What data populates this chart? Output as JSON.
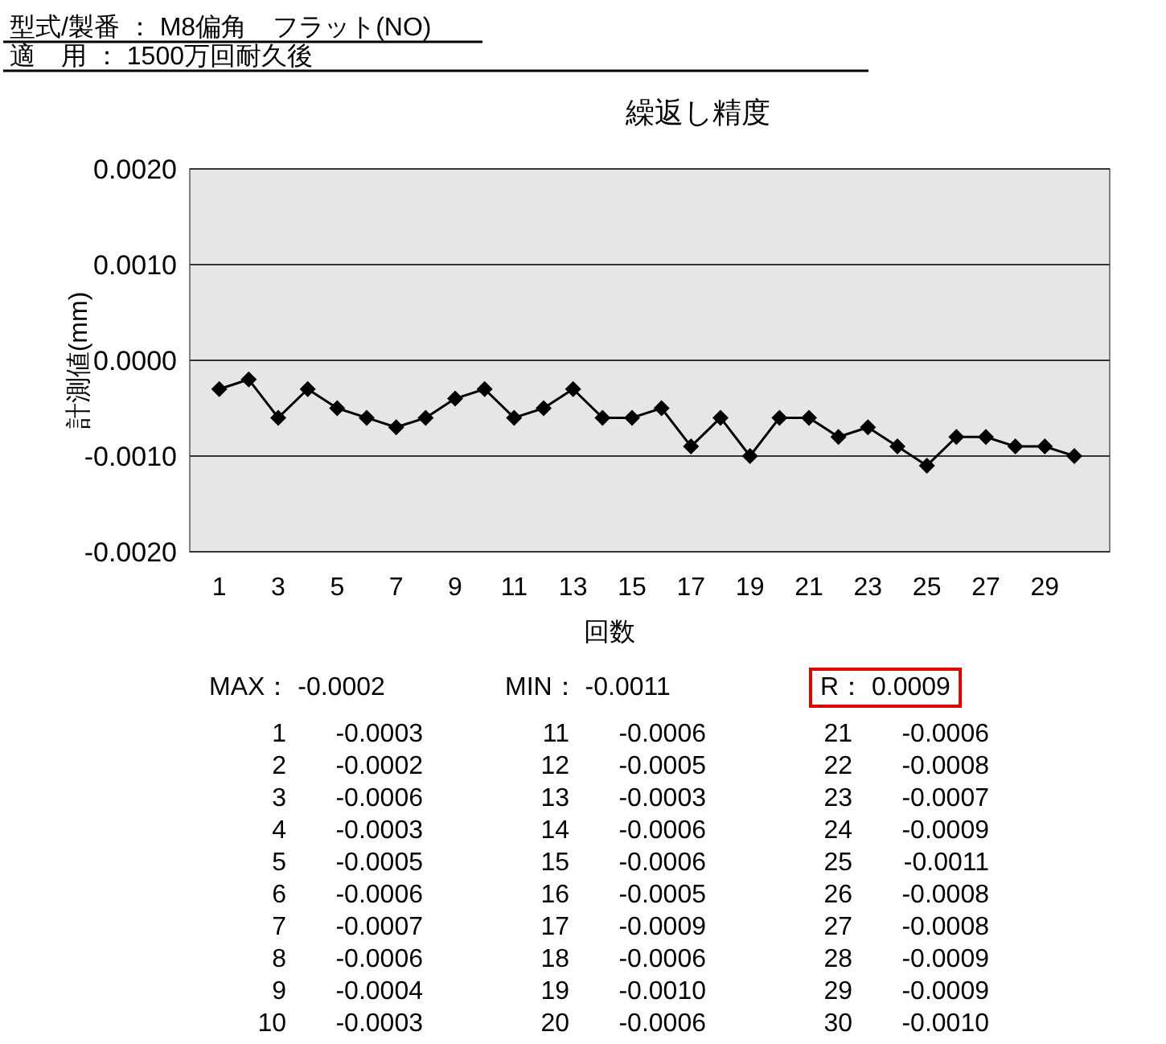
{
  "chart_data": {
    "type": "line",
    "title": "繰返し精度",
    "xlabel": "回数",
    "ylabel": "計測値(mm)",
    "annotations": [
      "型式/製番 ： M8偏角　フラット(NO)",
      "適　用 ： 1500万回耐久後",
      "MAX： -0.0002",
      "MIN： -0.0011",
      "R： 0.0009",
      "1 -0.0003",
      "2 -0.0002",
      "3 -0.0006",
      "4 -0.0003",
      "5 -0.0005",
      "6 -0.0006",
      "7 -0.0007",
      "8 -0.0006",
      "9 -0.0004",
      "10 -0.0003",
      "11 -0.0006",
      "12 -0.0005",
      "13 -0.0003",
      "14 -0.0006",
      "15 -0.0006",
      "16 -0.0005",
      "17 -0.0009",
      "18 -0.0006",
      "19 -0.0010",
      "20 -0.0006",
      "21 -0.0006",
      "22 -0.0008",
      "23 -0.0007",
      "24 -0.0009",
      "25 -0.0011",
      "26 -0.0008",
      "27 -0.0008",
      "28 -0.0009",
      "29 -0.0009",
      "30 -0.0010"
    ],
    "x": [
      1,
      2,
      3,
      4,
      5,
      6,
      7,
      8,
      9,
      10,
      11,
      12,
      13,
      14,
      15,
      16,
      17,
      18,
      19,
      20,
      21,
      22,
      23,
      24,
      25,
      26,
      27,
      28,
      29,
      30
    ],
    "series": [
      {
        "color": "#000000",
        "values": [
          -0.0003,
          -0.0002,
          -0.0006,
          -0.0003,
          -0.0005,
          -0.0006,
          -0.0007,
          -0.0006,
          -0.0004,
          -0.0003,
          -0.0006,
          -0.0005,
          -0.0003,
          -0.0006,
          -0.0006,
          -0.0005,
          -0.0009,
          -0.0006,
          -0.001,
          -0.0006,
          -0.0006,
          -0.0008,
          -0.0007,
          -0.0009,
          -0.0011,
          -0.0008,
          -0.0008,
          -0.0009,
          -0.0009,
          -0.001
        ]
      }
    ],
    "xlim": [
      0,
      31.2
    ],
    "xticks": [
      1,
      3,
      5,
      7,
      9,
      11,
      13,
      15,
      17,
      19,
      21,
      23,
      25,
      27,
      29
    ],
    "ylim": [
      -0.002,
      0.002
    ],
    "yticks": [
      {
        "value": 0.002,
        "label": "0.0020"
      },
      {
        "value": 0.001,
        "label": "0.0010"
      },
      {
        "value": 0,
        "label": "0.0000"
      },
      {
        "value": -0.001,
        "label": "-0.0010"
      },
      {
        "value": -0.002,
        "label": "-0.0020"
      }
    ],
    "grid": "y",
    "marker": "diamond",
    "line_style": "solid"
  }
}
